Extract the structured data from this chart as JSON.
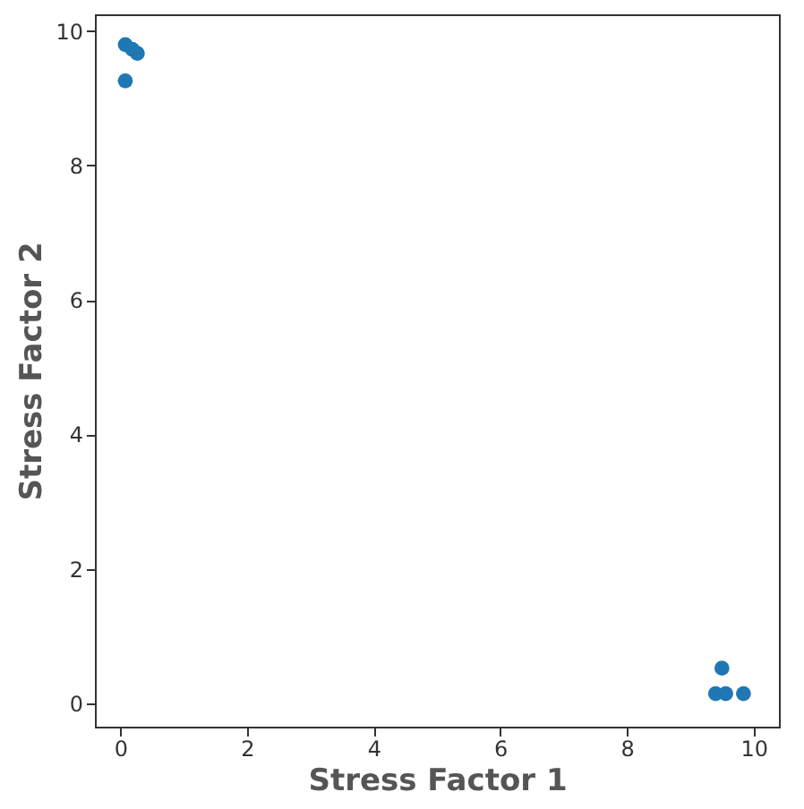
{
  "chart_data": {
    "type": "scatter",
    "xlabel": "Stress Factor 1",
    "ylabel": "Stress Factor 2",
    "x": [
      0.08,
      0.19,
      0.27,
      0.08,
      9.5,
      9.4,
      9.56,
      9.84
    ],
    "series": [
      {
        "color": "#1f77b4",
        "values": [
          9.8,
          9.73,
          9.67,
          9.26,
          0.52,
          0.14,
          0.14,
          0.14
        ]
      }
    ],
    "xlim": [
      -0.4,
      10.4
    ],
    "ylim": [
      -0.35,
      10.25
    ],
    "xticks": [
      0,
      2,
      4,
      6,
      8,
      10
    ],
    "yticks": [
      0,
      2,
      4,
      6,
      8,
      10
    ],
    "grid": false,
    "marker": "circle"
  }
}
